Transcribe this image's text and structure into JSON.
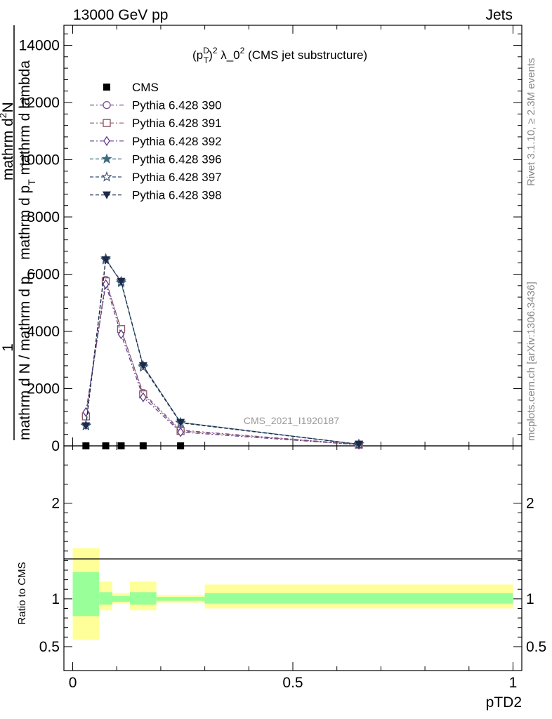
{
  "header": {
    "left": "13000 GeV pp",
    "right": "Jets"
  },
  "side_labels": {
    "top": "Rivet 3.1.10, ≥ 2.3M events",
    "bottom": "mcplots.cern.ch [arXiv:1306.3436]"
  },
  "plot_title": {
    "p": "(p",
    "sup_D": "D",
    "sub_T": "T",
    "close": ")",
    "sup_2": "2",
    "lam": " λ_0",
    "sup_2b": "2",
    "rest": " (CMS jet substructure)"
  },
  "watermark": "CMS_2021_I1920187",
  "ylabel": {
    "frac_one": "1",
    "denom": "mathrm d N / mathrm d p",
    "denom_sub": "T",
    "numer_line1": "mathrm d",
    "numer_sup": "2",
    "numer_N": "N",
    "numer_line2": "mathrm d p",
    "numer_sub": "T",
    "numer_line3": " mathrm d lambda"
  },
  "ratio_ylabel": "Ratio to CMS",
  "xlabel": "pTD2",
  "legend": [
    {
      "name": "CMS",
      "marker": "square-filled",
      "color": "#000000"
    },
    {
      "name": "Pythia 6.428 390",
      "marker": "circle-open",
      "color": "#7b4f8e"
    },
    {
      "name": "Pythia 6.428 391",
      "marker": "square-open",
      "color": "#8a5560"
    },
    {
      "name": "Pythia 6.428 392",
      "marker": "diamond-open",
      "color": "#5e3a8a"
    },
    {
      "name": "Pythia 6.428 396",
      "marker": "star-filled",
      "color": "#3d6a80"
    },
    {
      "name": "Pythia 6.428 397",
      "marker": "star-open",
      "color": "#344e70"
    },
    {
      "name": "Pythia 6.428 398",
      "marker": "triangle-down-filled",
      "color": "#1c2a4a"
    }
  ],
  "chart_data": {
    "type": "line",
    "main": {
      "xlim": [
        -0.02,
        1.02
      ],
      "ylim": [
        0,
        14700
      ],
      "y_ticks": [
        0,
        2000,
        4000,
        6000,
        8000,
        10000,
        12000,
        14000
      ],
      "y_tick_labels": [
        "0",
        "2000",
        "4000",
        "6000",
        "8000",
        "10000",
        "12000",
        "14000"
      ],
      "x": [
        0.03,
        0.075,
        0.11,
        0.16,
        0.245,
        0.65
      ],
      "cms": [
        0,
        0,
        0,
        0,
        0,
        null
      ],
      "series": [
        {
          "name": "Pythia 6.428 390",
          "values": [
            1050,
            5800,
            4050,
            1850,
            550,
            50
          ]
        },
        {
          "name": "Pythia 6.428 391",
          "values": [
            1030,
            5750,
            4080,
            1800,
            520,
            45
          ]
        },
        {
          "name": "Pythia 6.428 392",
          "values": [
            1180,
            5650,
            3900,
            1700,
            480,
            40
          ]
        },
        {
          "name": "Pythia 6.428 396",
          "values": [
            720,
            6550,
            5700,
            2800,
            820,
            60
          ]
        },
        {
          "name": "Pythia 6.428 397",
          "values": [
            700,
            6500,
            5750,
            2750,
            800,
            55
          ]
        },
        {
          "name": "Pythia 6.428 398",
          "values": [
            700,
            6500,
            5750,
            2800,
            820,
            55
          ]
        }
      ]
    },
    "ratio": {
      "ylim": [
        0.25,
        2.6
      ],
      "y_ticks": [
        0.5,
        1,
        2
      ],
      "y_tick_labels": [
        "0.5",
        "1",
        "2"
      ],
      "x_ticks": [
        0,
        0.5,
        1
      ],
      "x_tick_labels": [
        "0",
        "0.5",
        "1"
      ],
      "bins": [
        {
          "x0": 0.0,
          "x1": 0.06,
          "green": [
            0.82,
            1.28
          ],
          "yellow": [
            0.57,
            1.53
          ]
        },
        {
          "x0": 0.06,
          "x1": 0.09,
          "green": [
            0.94,
            1.07
          ],
          "yellow": [
            0.88,
            1.18
          ]
        },
        {
          "x0": 0.09,
          "x1": 0.13,
          "green": [
            0.97,
            1.03
          ],
          "yellow": [
            0.95,
            1.06
          ]
        },
        {
          "x0": 0.13,
          "x1": 0.19,
          "green": [
            0.94,
            1.07
          ],
          "yellow": [
            0.88,
            1.18
          ]
        },
        {
          "x0": 0.19,
          "x1": 0.3,
          "green": [
            0.98,
            1.02
          ],
          "yellow": [
            0.96,
            1.04
          ]
        },
        {
          "x0": 0.3,
          "x1": 1.0,
          "green": [
            0.95,
            1.06
          ],
          "yellow": [
            0.9,
            1.15
          ]
        }
      ]
    }
  }
}
